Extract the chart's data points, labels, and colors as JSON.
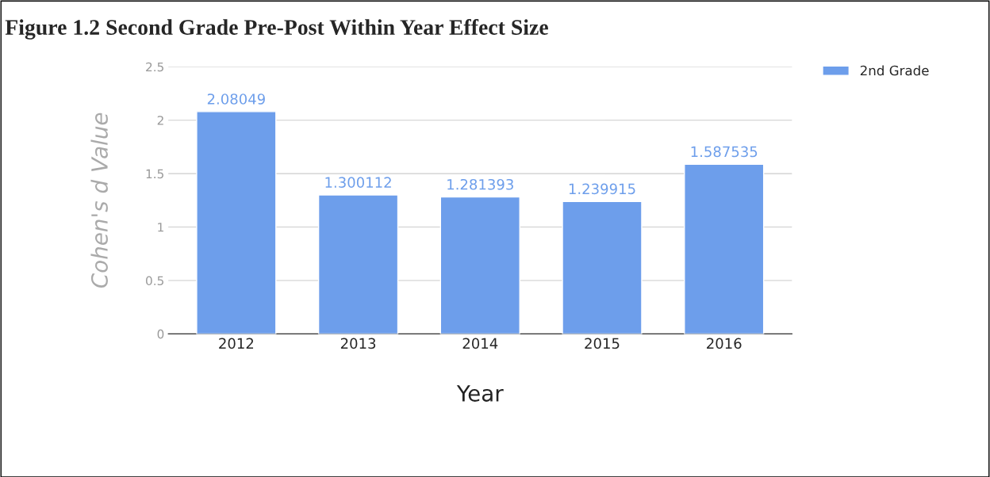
{
  "chart_data": {
    "type": "bar",
    "title": "Figure 1.2 Second Grade Pre-Post Within Year Effect Size",
    "categories": [
      "2012",
      "2013",
      "2014",
      "2015",
      "2016"
    ],
    "series": [
      {
        "name": "2nd Grade",
        "color": "#6d9eeb",
        "values": [
          2.08049,
          1.300112,
          1.281393,
          1.239915,
          1.587535
        ]
      }
    ],
    "xlabel": "Year",
    "ylabel": "Cohen's d Value",
    "ylim": [
      0,
      2.5
    ],
    "yticks": [
      0,
      0.5,
      1,
      1.5,
      2,
      2.5
    ],
    "grid": "y",
    "legend": "top right",
    "data_labels": true
  }
}
